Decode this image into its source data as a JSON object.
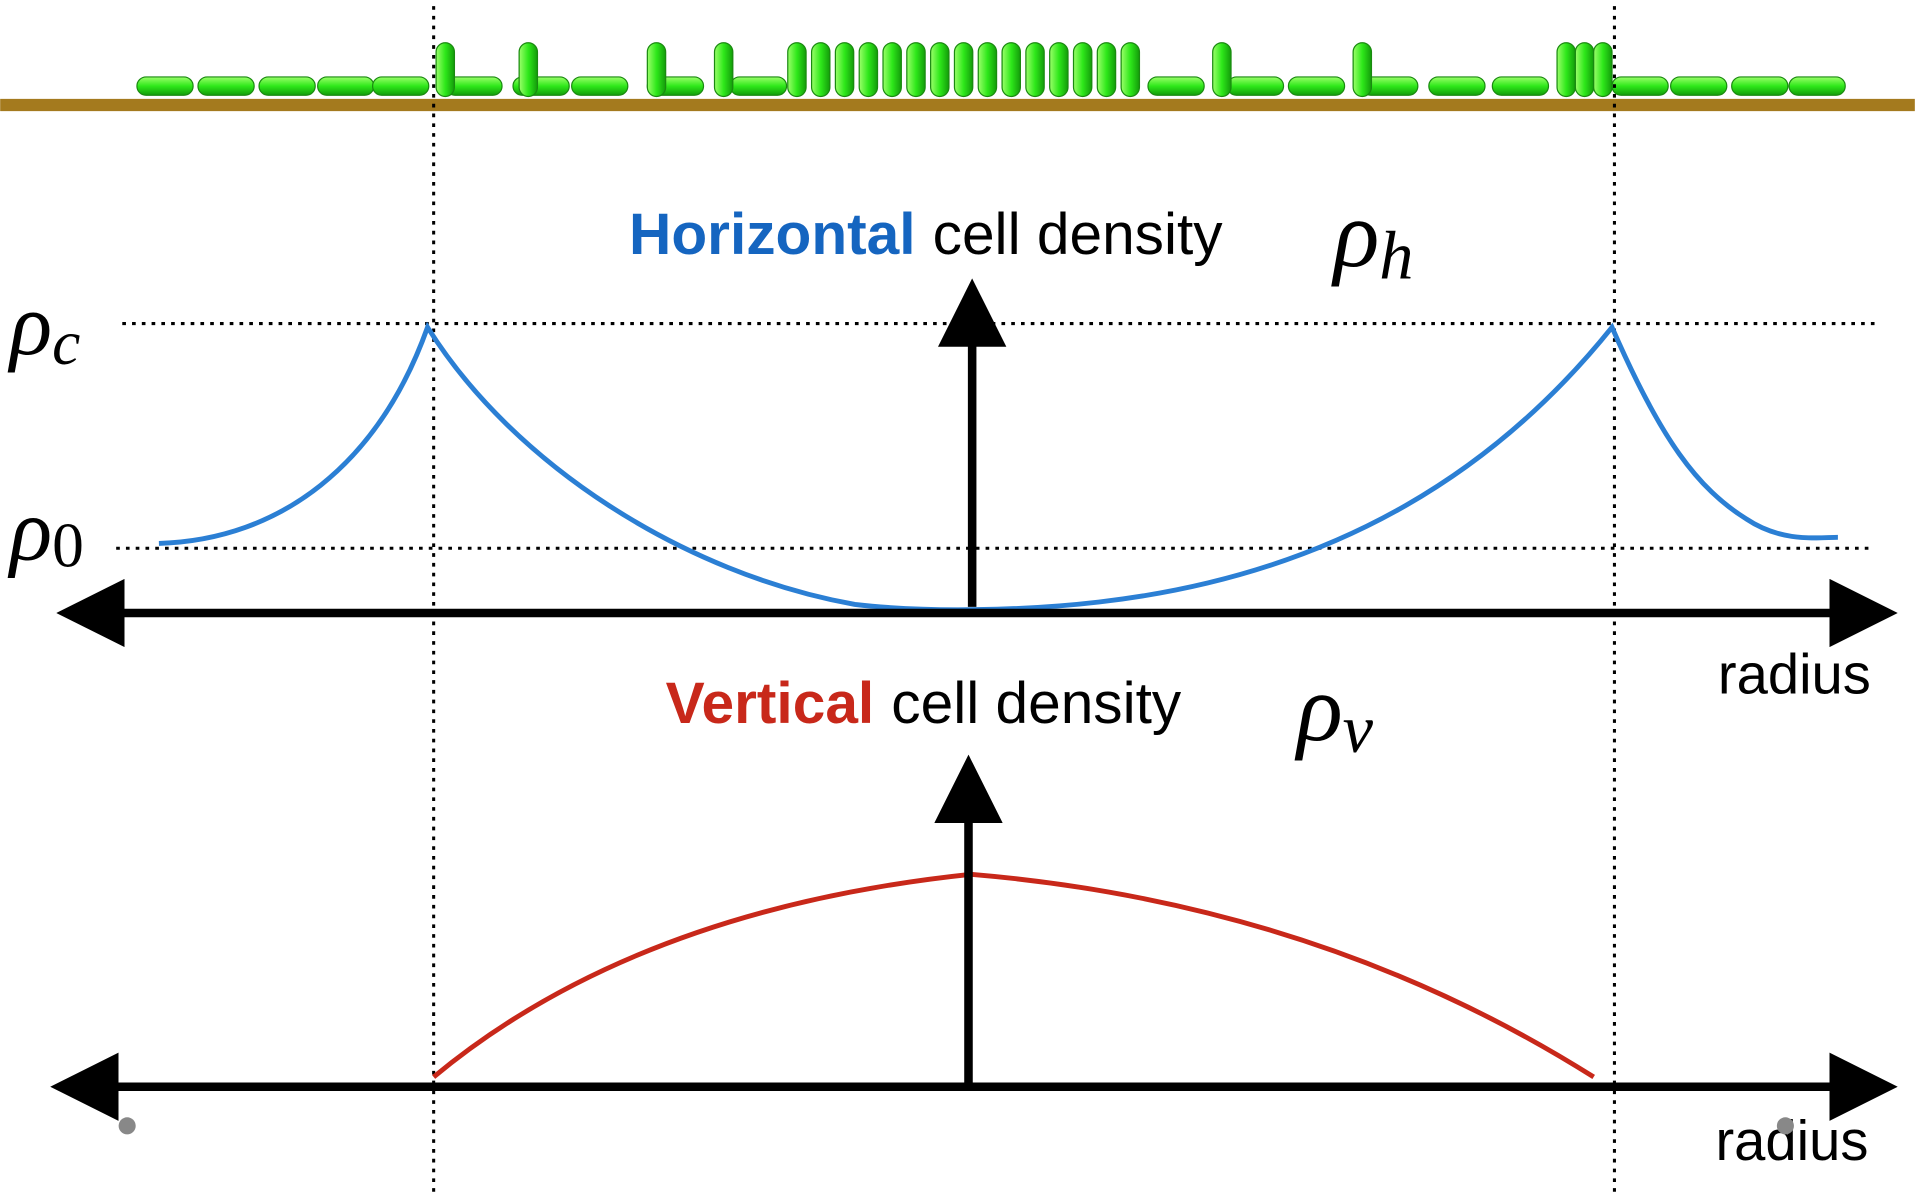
{
  "top_panel": {
    "title_highlight": "Horizontal",
    "title_rest": "cell density",
    "symbol": "ρ",
    "symbol_sub": "h",
    "level_high": {
      "symbol": "ρ",
      "sub": "c"
    },
    "level_low": {
      "symbol": "ρ",
      "sub": "0"
    },
    "axis_label": "radius"
  },
  "bottom_panel": {
    "title_highlight": "Vertical",
    "title_rest": "cell density",
    "symbol": "ρ",
    "symbol_sub": "v",
    "axis_label": "radius"
  }
}
